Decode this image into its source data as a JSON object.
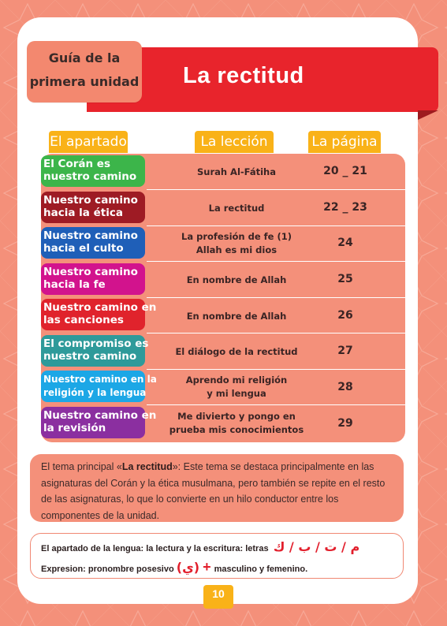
{
  "colors": {
    "background": "#f4907a",
    "banner_red": "#e8242c",
    "header_yellow": "#f9b218",
    "guide_box": "#f3886f"
  },
  "header": {
    "guide_line1": "Guía de la",
    "guide_line2": "primera unidad",
    "title": "La rectitud"
  },
  "table": {
    "headers": [
      "El apartado",
      "La lección",
      "La página"
    ],
    "rows": [
      {
        "label1": "El Corán es",
        "label2": "nuestro camino",
        "color": "#3cb54a",
        "lesson1": "Surah Al-Fátiha",
        "lesson2": "",
        "page": "20 _ 21"
      },
      {
        "label1": "Nuestro camino",
        "label2": "hacia la ética",
        "color": "#9e1b24",
        "lesson1": "La rectitud",
        "lesson2": "",
        "page": "22 _ 23"
      },
      {
        "label1": "Nuestro camino",
        "label2": "hacia el culto",
        "color": "#1f5fb8",
        "lesson1": "La profesión de fe (1)",
        "lesson2": "Allah es mi dios",
        "page": "24"
      },
      {
        "label1": "Nuestro camino",
        "label2": "hacia la fe",
        "color": "#d2138d",
        "lesson1": "En nombre de Allah",
        "lesson2": "",
        "page": "25"
      },
      {
        "label1": "Nuestro camino en",
        "label2": "las canciones",
        "color": "#e0232c",
        "lesson1": "En nombre de Allah",
        "lesson2": "",
        "page": "26"
      },
      {
        "label1": "El compromiso es",
        "label2": "nuestro camino",
        "color": "#2e9a9a",
        "lesson1": "El diálogo de la rectitud",
        "lesson2": "",
        "page": "27"
      },
      {
        "label1": "Nuestro camino en la",
        "label2": "religión y la lengua",
        "color": "#1ca7e6",
        "lesson1": "Aprendo mi religión",
        "lesson2": "y mi lengua",
        "page": "28"
      },
      {
        "label1": "Nuestro camino en",
        "label2": "la revisión",
        "color": "#8b2fa0",
        "lesson1": "Me divierto y pongo en",
        "lesson2": "prueba mis conocimientos",
        "page": "29"
      }
    ]
  },
  "theme": {
    "prefix": "El tema principal «",
    "bold": "La rectitud",
    "suffix": "»: Este tema se destaca principalmente en las asignaturas del Corán y la ética musulmana, pero también se repite en el resto de las asignaturas, lo que lo convierte en un hilo conductor entre los componentes de la unidad."
  },
  "language": {
    "line1_text": "El apartado de la lengua: la lectura y la escritura: letras",
    "line1_arabic": "م / ت / ب / ك",
    "line2_prefix": "Expresion: pronombre posesivo",
    "line2_arabic": "(ي)",
    "line2_plus": "+",
    "line2_suffix": "masculino y femenino."
  },
  "page_number": "10"
}
